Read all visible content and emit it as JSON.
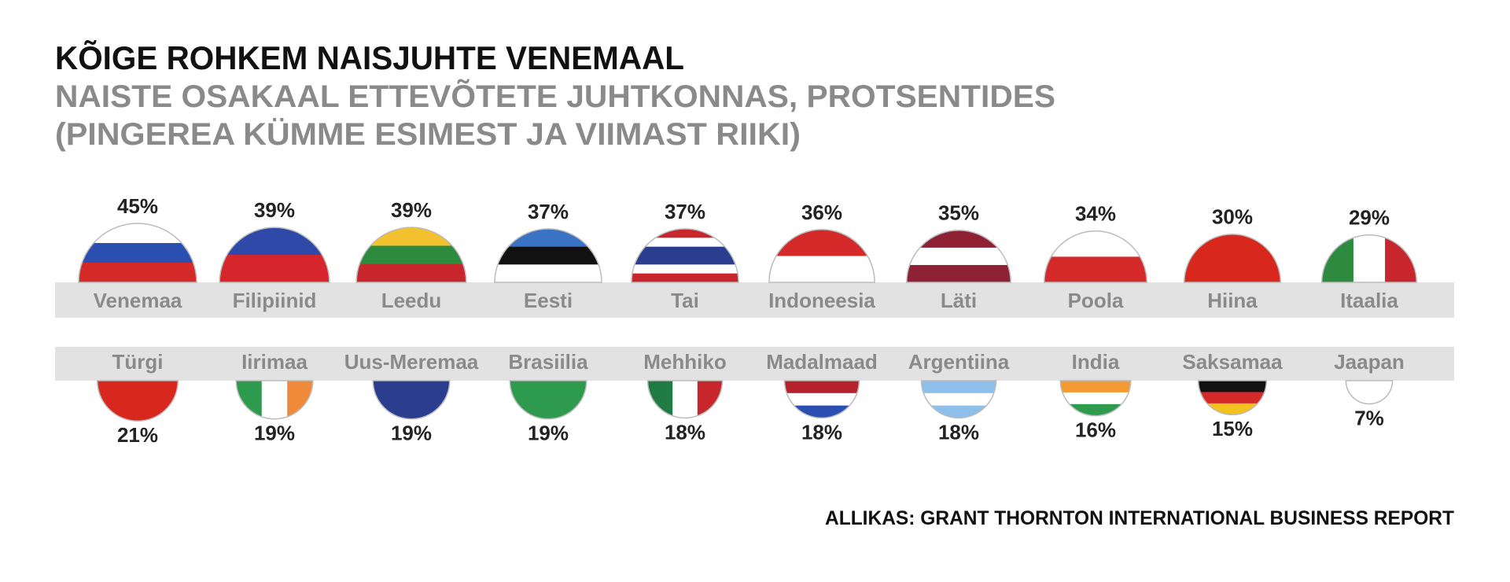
{
  "chart_data": {
    "type": "semicircle",
    "title": "KÕIGE ROHKEM NAISJUHTE VENEMAAL",
    "subtitle": [
      "NAISTE OSAKAAL ETTEVÕTETE JUHTKONNAS, PROTSENTIDES",
      "(PINGEREA KÜMME ESIMEST JA VIIMAST RIIKI)"
    ],
    "source": "ALLIKAS: GRANT THORNTON INTERNATIONAL BUSINESS REPORT",
    "series": [
      {
        "categories": [
          "Venemaa",
          "Filipiinid",
          "Leedu",
          "Eesti",
          "Tai",
          "Indoneesia",
          "Läti",
          "Poola",
          "Hiina",
          "Itaalia"
        ],
        "values": [
          45,
          39,
          39,
          37,
          37,
          36,
          35,
          34,
          30,
          29
        ],
        "value_labels": [
          "45%",
          "39%",
          "39%",
          "37%",
          "37%",
          "36%",
          "35%",
          "34%",
          "30%",
          "29%"
        ]
      },
      {
        "categories": [
          "Türgi",
          "Iirimaa",
          "Uus-Meremaa",
          "Brasiilia",
          "Mehhiko",
          "Madalmaad",
          "Argentiina",
          "India",
          "Saksamaa",
          "Jaapan"
        ],
        "values": [
          21,
          19,
          19,
          19,
          18,
          18,
          18,
          16,
          15,
          7
        ],
        "value_labels": [
          "21%",
          "19%",
          "19%",
          "19%",
          "18%",
          "18%",
          "18%",
          "16%",
          "15%",
          "7%"
        ]
      }
    ]
  }
}
